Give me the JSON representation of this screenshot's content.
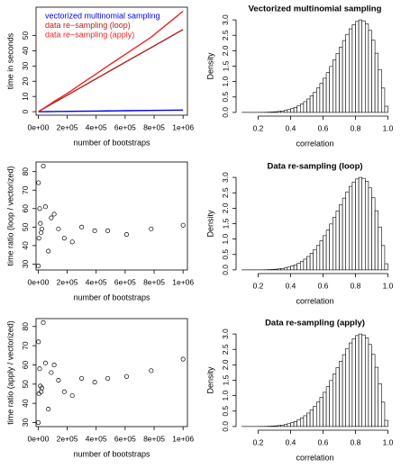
{
  "chart_data": [
    {
      "type": "line",
      "xlabel": "number of bootstraps",
      "ylabel": "time in seconds",
      "x": [
        1000,
        2000,
        5000,
        10000,
        15000,
        20000,
        25000,
        35000,
        50000,
        70000,
        90000,
        110000,
        140000,
        180000,
        235000,
        300000,
        390000,
        480000,
        610000,
        780000,
        1000000
      ],
      "series": [
        {
          "name": "vectorized multinomial sampling",
          "color": "#0000ee",
          "values": [
            0.01,
            0.01,
            0.01,
            0.02,
            0.02,
            0.02,
            0.03,
            0.04,
            0.05,
            0.07,
            0.1,
            0.12,
            0.15,
            0.19,
            0.25,
            0.32,
            0.41,
            0.51,
            0.65,
            0.83,
            1.06
          ]
        },
        {
          "name": "data re−sampling (loop)",
          "color": "#b22222",
          "values": [
            0.05,
            0.1,
            0.27,
            0.55,
            0.82,
            1.1,
            1.37,
            1.9,
            2.7,
            3.8,
            4.9,
            6.0,
            7.6,
            9.7,
            12.7,
            16.2,
            21.1,
            26,
            33,
            42.1,
            54
          ]
        },
        {
          "name": "data re−sampling (apply)",
          "color": "#ee2222",
          "values": [
            0.06,
            0.12,
            0.32,
            0.6,
            0.95,
            1.2,
            1.5,
            2.1,
            3.0,
            4.2,
            5.5,
            6.8,
            8.5,
            10.8,
            14.2,
            18.5,
            24.2,
            30,
            38.2,
            49,
            66
          ]
        }
      ],
      "xlim": [
        -15000,
        1030000
      ],
      "ylim": [
        -2.3,
        68.6
      ],
      "xticks": [
        {
          "value": 0,
          "label": "0e+00"
        },
        {
          "value": 200000,
          "label": "2e+05"
        },
        {
          "value": 400000,
          "label": "4e+05"
        },
        {
          "value": 600000,
          "label": "6e+05"
        },
        {
          "value": 800000,
          "label": "8e+05"
        },
        {
          "value": 1000000,
          "label": "1e+06"
        }
      ],
      "yticks": [
        0,
        10,
        20,
        30,
        40,
        50
      ],
      "legend": "topleft",
      "box": true
    },
    {
      "type": "histogram",
      "title": "Vectorized multinomial sampling",
      "xlabel": "correlation",
      "ylabel": "Density",
      "color": "#ffffff",
      "bins": [
        0.1,
        0.12,
        0.14,
        0.16,
        0.18,
        0.2,
        0.22,
        0.24,
        0.26,
        0.28,
        0.3,
        0.32,
        0.34,
        0.36,
        0.38,
        0.4,
        0.42,
        0.44,
        0.46,
        0.48,
        0.5,
        0.52,
        0.54,
        0.56,
        0.58,
        0.6,
        0.62,
        0.64,
        0.66,
        0.68,
        0.7,
        0.72,
        0.74,
        0.76,
        0.78,
        0.8,
        0.82,
        0.84,
        0.86,
        0.88,
        0.9,
        0.92,
        0.94,
        0.96,
        0.98,
        1.0
      ],
      "values": [
        0.001,
        0.001,
        0.001,
        0.001,
        0.001,
        0.002,
        0.003,
        0.005,
        0.009,
        0.014,
        0.022,
        0.032,
        0.046,
        0.066,
        0.091,
        0.123,
        0.163,
        0.214,
        0.275,
        0.349,
        0.436,
        0.539,
        0.657,
        0.792,
        0.944,
        1.11,
        1.29,
        1.49,
        1.7,
        1.91,
        2.12,
        2.33,
        2.53,
        2.71,
        2.85,
        2.95,
        3.0,
        2.97,
        2.87,
        2.66,
        2.34,
        1.92,
        1.39,
        0.79,
        0.2
      ],
      "xlim": [
        0.064,
        1.036
      ],
      "ylim": [
        -0.12,
        3.12
      ],
      "xticks": [
        0.2,
        0.4,
        0.6,
        0.8,
        {
          "value": 1,
          "label": "1.0"
        }
      ],
      "yticks": [
        {
          "value": 0,
          "label": "0.0"
        },
        0.5,
        {
          "value": 1,
          "label": "1.0"
        },
        1.5,
        {
          "value": 2,
          "label": "2.0"
        },
        2.5,
        {
          "value": 3,
          "label": "3.0"
        }
      ],
      "box": false
    },
    {
      "type": "scatter",
      "xlabel": "number of bootstraps",
      "ylabel": "time ratio (loop / vectorized)",
      "x": [
        1000,
        2000,
        5000,
        10000,
        15000,
        20000,
        25000,
        35000,
        50000,
        70000,
        90000,
        110000,
        140000,
        180000,
        235000,
        300000,
        390000,
        480000,
        610000,
        780000,
        1000000
      ],
      "values": [
        29,
        74,
        44,
        60,
        52,
        47,
        49,
        83,
        61,
        37,
        55,
        57,
        49,
        44,
        42,
        50,
        48,
        48,
        46,
        49,
        51
      ],
      "xlim": [
        -15000,
        1030000
      ],
      "ylim": [
        26.8,
        85.2
      ],
      "xticks": [
        {
          "value": 0,
          "label": "0e+00"
        },
        {
          "value": 200000,
          "label": "2e+05"
        },
        {
          "value": 400000,
          "label": "4e+05"
        },
        {
          "value": 600000,
          "label": "6e+05"
        },
        {
          "value": 800000,
          "label": "8e+05"
        },
        {
          "value": 1000000,
          "label": "1e+06"
        }
      ],
      "yticks": [
        30,
        40,
        50,
        60,
        70,
        80
      ],
      "box": true
    },
    {
      "type": "histogram",
      "title": "Data re-sampling  (loop)",
      "xlabel": "correlation",
      "ylabel": "Density",
      "color": "#ffffff",
      "bins": [
        0.1,
        0.12,
        0.14,
        0.16,
        0.18,
        0.2,
        0.22,
        0.24,
        0.26,
        0.28,
        0.3,
        0.32,
        0.34,
        0.36,
        0.38,
        0.4,
        0.42,
        0.44,
        0.46,
        0.48,
        0.5,
        0.52,
        0.54,
        0.56,
        0.58,
        0.6,
        0.62,
        0.64,
        0.66,
        0.68,
        0.7,
        0.72,
        0.74,
        0.76,
        0.78,
        0.8,
        0.82,
        0.84,
        0.86,
        0.88,
        0.9,
        0.92,
        0.94,
        0.96,
        0.98,
        1.0
      ],
      "values": [
        0.001,
        0.001,
        0.001,
        0.001,
        0.001,
        0.002,
        0.003,
        0.005,
        0.009,
        0.014,
        0.022,
        0.032,
        0.046,
        0.066,
        0.091,
        0.123,
        0.163,
        0.214,
        0.275,
        0.349,
        0.436,
        0.539,
        0.657,
        0.792,
        0.944,
        1.11,
        1.29,
        1.49,
        1.7,
        1.91,
        2.12,
        2.33,
        2.53,
        2.71,
        2.85,
        2.95,
        3.0,
        2.97,
        2.87,
        2.66,
        2.34,
        1.92,
        1.39,
        0.79,
        0.2
      ],
      "xlim": [
        0.064,
        1.036
      ],
      "ylim": [
        -0.12,
        3.12
      ],
      "xticks": [
        0.2,
        0.4,
        0.6,
        0.8,
        {
          "value": 1,
          "label": "1.0"
        }
      ],
      "yticks": [
        {
          "value": 0,
          "label": "0.0"
        },
        0.5,
        {
          "value": 1,
          "label": "1.0"
        },
        1.5,
        {
          "value": 2,
          "label": "2.0"
        },
        2.5,
        {
          "value": 3,
          "label": "3.0"
        }
      ],
      "box": false
    },
    {
      "type": "scatter",
      "xlabel": "number of bootstraps",
      "ylabel": "time ratio (apply / vectorized)",
      "x": [
        1000,
        2000,
        5000,
        10000,
        15000,
        20000,
        25000,
        35000,
        50000,
        70000,
        90000,
        110000,
        140000,
        180000,
        235000,
        300000,
        390000,
        480000,
        610000,
        780000,
        1000000
      ],
      "values": [
        30,
        72,
        45,
        58,
        49,
        46,
        48,
        82,
        61,
        37,
        56,
        60,
        52,
        46,
        44,
        53,
        51,
        53,
        54,
        57,
        63
      ],
      "xlim": [
        -15000,
        1030000
      ],
      "ylim": [
        27.9,
        84.1
      ],
      "xticks": [
        {
          "value": 0,
          "label": "0e+00"
        },
        {
          "value": 200000,
          "label": "2e+05"
        },
        {
          "value": 400000,
          "label": "4e+05"
        },
        {
          "value": 600000,
          "label": "6e+05"
        },
        {
          "value": 800000,
          "label": "8e+05"
        },
        {
          "value": 1000000,
          "label": "1e+06"
        }
      ],
      "yticks": [
        30,
        40,
        50,
        60,
        70,
        80
      ],
      "box": true
    },
    {
      "type": "histogram",
      "title": "Data re-sampling  (apply)",
      "xlabel": "correlation",
      "ylabel": "Density",
      "color": "#ffffff",
      "bins": [
        0.1,
        0.12,
        0.14,
        0.16,
        0.18,
        0.2,
        0.22,
        0.24,
        0.26,
        0.28,
        0.3,
        0.32,
        0.34,
        0.36,
        0.38,
        0.4,
        0.42,
        0.44,
        0.46,
        0.48,
        0.5,
        0.52,
        0.54,
        0.56,
        0.58,
        0.6,
        0.62,
        0.64,
        0.66,
        0.68,
        0.7,
        0.72,
        0.74,
        0.76,
        0.78,
        0.8,
        0.82,
        0.84,
        0.86,
        0.88,
        0.9,
        0.92,
        0.94,
        0.96,
        0.98,
        1.0
      ],
      "values": [
        0.001,
        0.001,
        0.001,
        0.001,
        0.001,
        0.002,
        0.003,
        0.005,
        0.009,
        0.014,
        0.022,
        0.032,
        0.046,
        0.066,
        0.091,
        0.123,
        0.163,
        0.214,
        0.275,
        0.349,
        0.436,
        0.539,
        0.657,
        0.792,
        0.944,
        1.11,
        1.29,
        1.49,
        1.7,
        1.91,
        2.12,
        2.33,
        2.53,
        2.71,
        2.85,
        2.95,
        3.0,
        2.97,
        2.87,
        2.66,
        2.34,
        1.92,
        1.39,
        0.79,
        0.2
      ],
      "xlim": [
        0.064,
        1.036
      ],
      "ylim": [
        -0.12,
        3.12
      ],
      "xticks": [
        0.2,
        0.4,
        0.6,
        0.8,
        {
          "value": 1,
          "label": "1.0"
        }
      ],
      "yticks": [
        {
          "value": 0,
          "label": "0.0"
        },
        0.5,
        {
          "value": 1,
          "label": "1.0"
        },
        1.5,
        {
          "value": 2,
          "label": "2.0"
        },
        2.5,
        {
          "value": 3,
          "label": "3.0"
        }
      ],
      "box": false
    }
  ]
}
